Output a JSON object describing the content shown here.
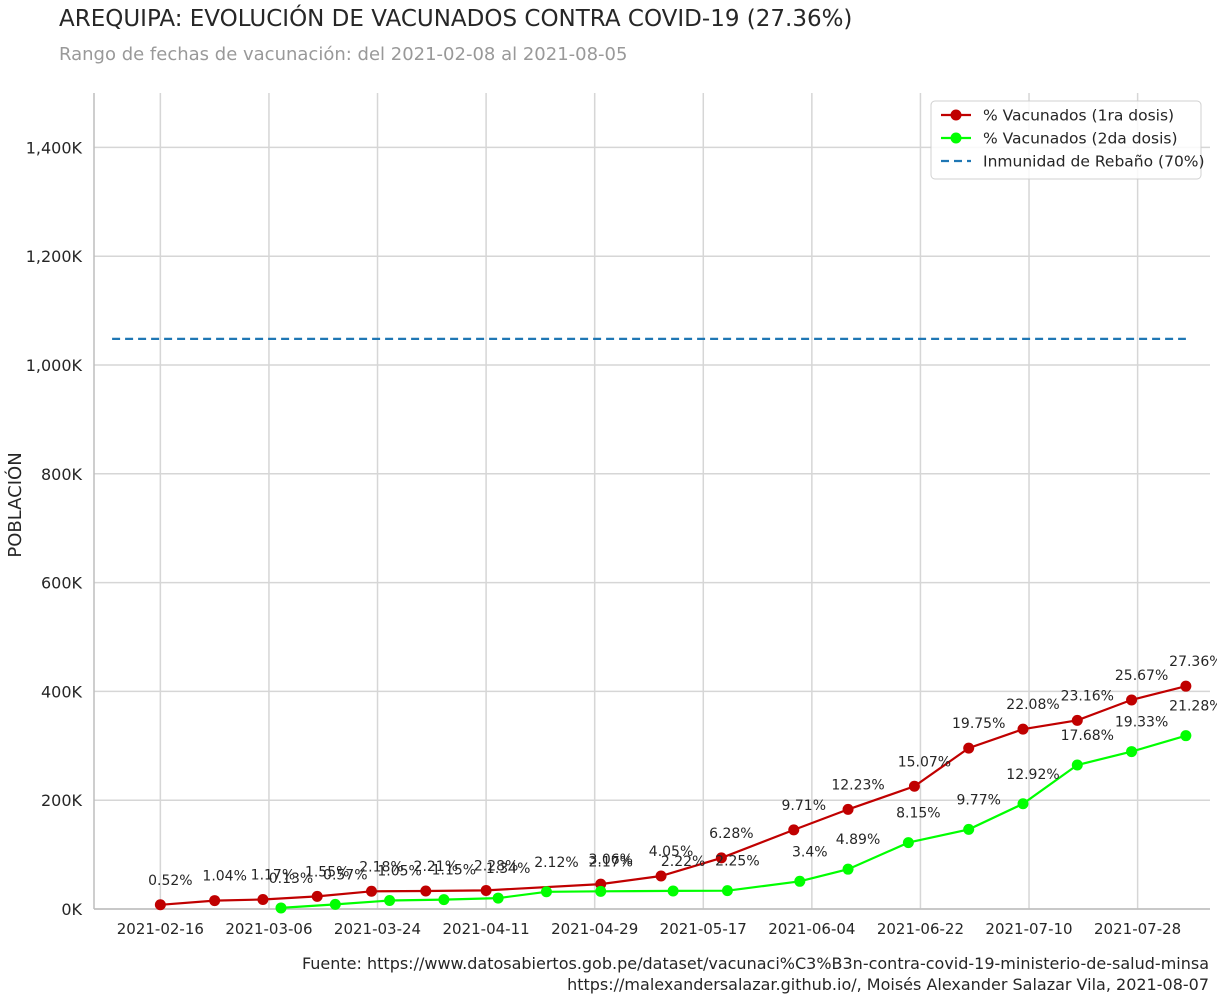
{
  "title": "AREQUIPA: EVOLUCIÓN DE VACUNADOS CONTRA COVID-19 (27.36%)",
  "subtitle": "Rango de fechas de vacunación: del 2021-02-08 al 2021-08-05",
  "source_line_1": "Fuente: https://www.datosabiertos.gob.pe/dataset/vacunaci%C3%B3n-contra-covid-19-ministerio-de-salud-minsa",
  "source_line_2": "https://malexandersalazar.github.io/, Moisés Alexander Salazar Vila, 2021-08-07",
  "chart_data": {
    "type": "line",
    "ylabel": "POBLACIÓN",
    "xlabel": "",
    "ylim": [
      0,
      1500000
    ],
    "xlim": [
      "2021-02-05",
      "2021-08-09"
    ],
    "x_ticks": [
      "2021-02-16",
      "2021-03-06",
      "2021-03-24",
      "2021-04-11",
      "2021-04-29",
      "2021-05-17",
      "2021-06-04",
      "2021-06-22",
      "2021-07-10",
      "2021-07-28"
    ],
    "y_ticks": [
      0,
      200000,
      400000,
      600000,
      800000,
      1000000,
      1200000,
      1400000
    ],
    "y_tick_labels": [
      "0K",
      "200K",
      "400K",
      "600K",
      "800K",
      "1,000K",
      "1,200K",
      "1,400K"
    ],
    "grid": true,
    "legend_position": "top-right",
    "series": [
      {
        "name": "% Vacunados (1ra dosis)",
        "color": "#c00000",
        "style": "line-marker",
        "points": [
          {
            "x": "2021-02-16",
            "y": 7800,
            "label": "0.52%"
          },
          {
            "x": "2021-02-25",
            "y": 15500,
            "label": "1.04%"
          },
          {
            "x": "2021-03-05",
            "y": 17500,
            "label": "1.17%"
          },
          {
            "x": "2021-03-14",
            "y": 23200,
            "label": "1.55%"
          },
          {
            "x": "2021-03-23",
            "y": 32600,
            "label": "2.18%"
          },
          {
            "x": "2021-04-01",
            "y": 33100,
            "label": "2.21%"
          },
          {
            "x": "2021-04-11",
            "y": 34100,
            "label": "2.28%"
          },
          {
            "x": "2021-04-30",
            "y": 45800,
            "label": "3.06%"
          },
          {
            "x": "2021-05-10",
            "y": 60600,
            "label": "4.05%"
          },
          {
            "x": "2021-05-20",
            "y": 94000,
            "label": "6.28%"
          },
          {
            "x": "2021-06-01",
            "y": 145400,
            "label": "9.71%"
          },
          {
            "x": "2021-06-10",
            "y": 183100,
            "label": "12.23%"
          },
          {
            "x": "2021-06-21",
            "y": 225600,
            "label": "15.07%"
          },
          {
            "x": "2021-06-30",
            "y": 295700,
            "label": "19.75%"
          },
          {
            "x": "2021-07-09",
            "y": 330600,
            "label": "22.08%"
          },
          {
            "x": "2021-07-18",
            "y": 346800,
            "label": "23.16%"
          },
          {
            "x": "2021-07-27",
            "y": 384300,
            "label": "25.67%"
          },
          {
            "x": "2021-08-05",
            "y": 409600,
            "label": "27.36%"
          }
        ]
      },
      {
        "name": "% Vacunados (2da dosis)",
        "color": "#00ff00",
        "style": "line-marker",
        "points": [
          {
            "x": "2021-03-08",
            "y": 1950,
            "label": "0.13%"
          },
          {
            "x": "2021-03-17",
            "y": 8500,
            "label": "0.57%"
          },
          {
            "x": "2021-03-26",
            "y": 15700,
            "label": "1.05%"
          },
          {
            "x": "2021-04-04",
            "y": 17200,
            "label": "1.15%"
          },
          {
            "x": "2021-04-13",
            "y": 20100,
            "label": "1.34%"
          },
          {
            "x": "2021-04-21",
            "y": 31700,
            "label": "2.12%"
          },
          {
            "x": "2021-04-30",
            "y": 32500,
            "label": "2.17%"
          },
          {
            "x": "2021-05-12",
            "y": 33200,
            "label": "2.22%"
          },
          {
            "x": "2021-05-21",
            "y": 33700,
            "label": "2.25%"
          },
          {
            "x": "2021-06-02",
            "y": 50900,
            "label": "3.4%"
          },
          {
            "x": "2021-06-10",
            "y": 73200,
            "label": "4.89%"
          },
          {
            "x": "2021-06-20",
            "y": 122000,
            "label": "8.15%"
          },
          {
            "x": "2021-06-30",
            "y": 146300,
            "label": "9.77%"
          },
          {
            "x": "2021-07-09",
            "y": 193400,
            "label": "12.92%"
          },
          {
            "x": "2021-07-18",
            "y": 264700,
            "label": "17.68%"
          },
          {
            "x": "2021-07-27",
            "y": 289400,
            "label": "19.33%"
          },
          {
            "x": "2021-08-05",
            "y": 318600,
            "label": "21.28%"
          }
        ]
      },
      {
        "name": "Inmunidad de Rebaño (70%)",
        "color": "#1f77b4",
        "style": "dashed",
        "points": [
          {
            "x": "2021-02-08",
            "y": 1048000
          },
          {
            "x": "2021-08-05",
            "y": 1048000
          }
        ]
      }
    ]
  }
}
